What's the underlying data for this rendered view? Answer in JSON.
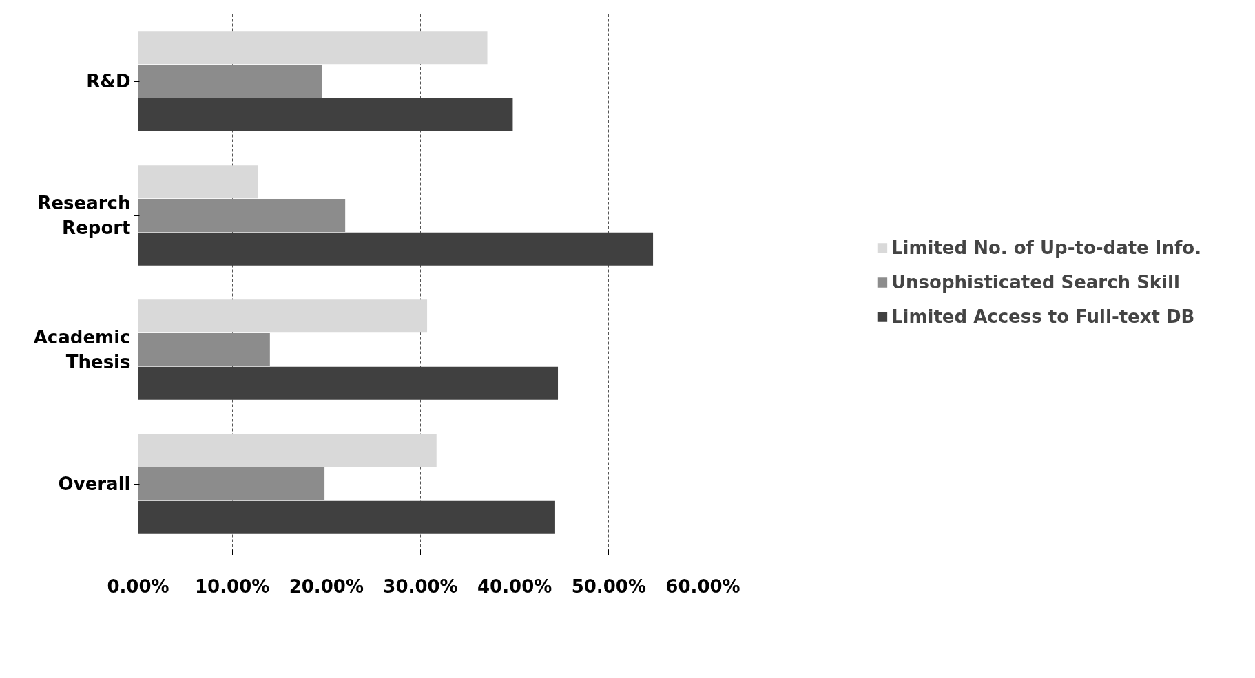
{
  "chart_data": {
    "type": "bar",
    "orientation": "horizontal",
    "categories": [
      "R&D",
      "Research Report",
      "Academic Thesis",
      "Overall"
    ],
    "series": [
      {
        "name": "Limited No. of Up-to-date Info.",
        "color": "#d9d9d9",
        "values": [
          37.1,
          12.7,
          30.7,
          31.7
        ]
      },
      {
        "name": "Unsophisticated Search Skill",
        "color": "#8c8c8c",
        "values": [
          19.5,
          22.0,
          14.0,
          19.8
        ]
      },
      {
        "name": "Limited Access to Full-text DB",
        "color": "#404040",
        "values": [
          39.8,
          54.7,
          44.6,
          44.3
        ]
      }
    ],
    "xlim": [
      0,
      60
    ],
    "xticks": [
      {
        "value": 0,
        "label": "0.00%"
      },
      {
        "value": 10,
        "label": "10.00%"
      },
      {
        "value": 20,
        "label": "20.00%"
      },
      {
        "value": 30,
        "label": "30.00%"
      },
      {
        "value": 40,
        "label": "40.00%"
      },
      {
        "value": 50,
        "label": "50.00%"
      },
      {
        "value": 60,
        "label": "60.00%"
      }
    ],
    "grid": "x",
    "legend": "right"
  }
}
